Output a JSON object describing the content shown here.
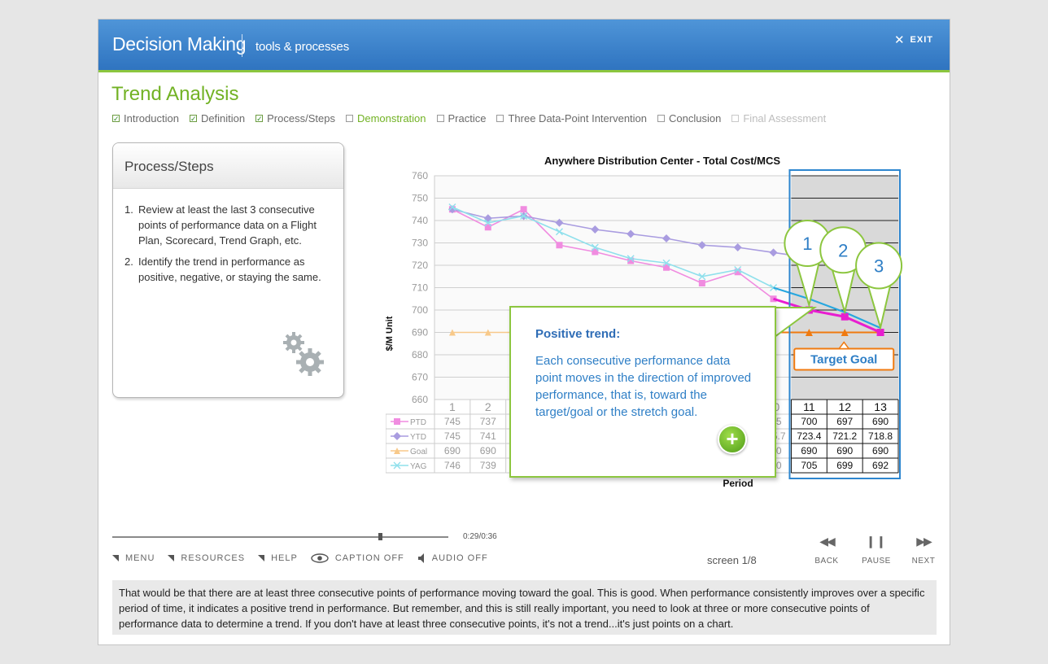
{
  "header": {
    "app_title": "Decision Making",
    "app_subtitle": "tools & processes",
    "exit_label": "EXIT"
  },
  "section_title": "Trend Analysis",
  "nav": [
    {
      "label": "Introduction",
      "state": "done"
    },
    {
      "label": "Definition",
      "state": "done"
    },
    {
      "label": "Process/Steps",
      "state": "done"
    },
    {
      "label": "Demonstration",
      "state": "active"
    },
    {
      "label": "Practice",
      "state": "todo"
    },
    {
      "label": "Three Data-Point Intervention",
      "state": "todo"
    },
    {
      "label": "Conclusion",
      "state": "todo"
    },
    {
      "label": "Final Assessment",
      "state": "disabled"
    }
  ],
  "panel": {
    "title": "Process/Steps",
    "steps": [
      {
        "num": "1.",
        "text": "Review at least the last 3 consecutive points of performance data on a Flight Plan, Scorecard, Trend Graph, etc."
      },
      {
        "num": "2.",
        "text": "Identify the trend in performance as positive, negative, or staying the same."
      }
    ],
    "icon": "gears-icon"
  },
  "callout": {
    "title": "Positive trend:",
    "body": "Each consecutive performance data point moves in the direction of improved performance, that is, toward the target/goal or the stretch goal.",
    "button_icon": "plus-icon"
  },
  "chart_data": {
    "type": "line",
    "title": "Anywhere Distribution Center - Total Cost/MCS",
    "xlabel": "Period",
    "ylabel": "$/M Unit",
    "ylim": [
      660,
      760
    ],
    "yticks": [
      660,
      670,
      680,
      690,
      700,
      710,
      720,
      730,
      740,
      750,
      760
    ],
    "categories": [
      "1",
      "2",
      "3",
      "4",
      "5",
      "6",
      "7",
      "8",
      "9",
      "10",
      "11",
      "12",
      "13"
    ],
    "series": [
      {
        "name": "PTD",
        "color": "#f08ce0",
        "marker": "square",
        "values": [
          745,
          737,
          745,
          729,
          726,
          722,
          719,
          712,
          717,
          705,
          700,
          697,
          690
        ],
        "table": [
          "745",
          "737",
          "",
          "",
          "",
          "",
          "",
          "",
          "",
          "705",
          "700",
          "697",
          "690"
        ]
      },
      {
        "name": "YTD",
        "color": "#a99ce0",
        "marker": "diamond",
        "values": [
          745,
          741,
          742,
          739,
          736,
          734,
          732,
          729,
          728,
          725.7,
          723.4,
          721.2,
          718.8
        ],
        "table": [
          "745",
          "741",
          "",
          "",
          "",
          "",
          "",
          "",
          "",
          "725.7",
          "723.4",
          "721.2",
          "718.8"
        ]
      },
      {
        "name": "Goal",
        "color": "#f8c98a",
        "marker": "triangle",
        "values": [
          690,
          690,
          690,
          690,
          690,
          690,
          690,
          690,
          690,
          690,
          690,
          690,
          690
        ],
        "table": [
          "690",
          "690",
          "",
          "",
          "",
          "",
          "",
          "",
          "",
          "690",
          "690",
          "690",
          "690"
        ]
      },
      {
        "name": "YAG",
        "color": "#8fe0ec",
        "marker": "x",
        "values": [
          746,
          739,
          742,
          735,
          728,
          723,
          721,
          715,
          718,
          710,
          705,
          699,
          692
        ],
        "table": [
          "746",
          "739",
          "",
          "",
          "",
          "",
          "",
          "",
          "",
          "710",
          "705",
          "699",
          "692"
        ]
      }
    ],
    "highlight_periods": [
      11,
      12,
      13
    ],
    "highlight_colors": {
      "PTD": "#e81dd0",
      "Trend": "#27a7df",
      "Goal": "#f07a10",
      "box": "#2d86cf"
    },
    "point_markers": [
      "1",
      "2",
      "3"
    ],
    "target_label": "Target Goal",
    "grid": true
  },
  "player": {
    "time": "0:29/0:36",
    "progress": 0.8,
    "screen_label": "screen 1/8",
    "menu_items": [
      {
        "label": "MENU",
        "icon": "menu-arrow-icon"
      },
      {
        "label": "RESOURCES",
        "icon": "resources-arrow-icon"
      },
      {
        "label": "HELP",
        "icon": "help-arrow-icon"
      },
      {
        "label": "CAPTION OFF",
        "icon": "eye-icon"
      },
      {
        "label": "AUDIO OFF",
        "icon": "speaker-icon"
      }
    ],
    "back_label": "BACK",
    "pause_label": "PAUSE",
    "next_label": "NEXT"
  },
  "caption": "That would be that there are at least three consecutive points of performance moving toward the goal. This is good. When performance consistently improves over a specific period of time, it indicates a positive trend in performance. But remember, and this is still really important, you need to look at three or more consecutive points of performance data to determine a trend. If you don't have at least three consecutive points, it's not a trend...it's just points on a chart."
}
